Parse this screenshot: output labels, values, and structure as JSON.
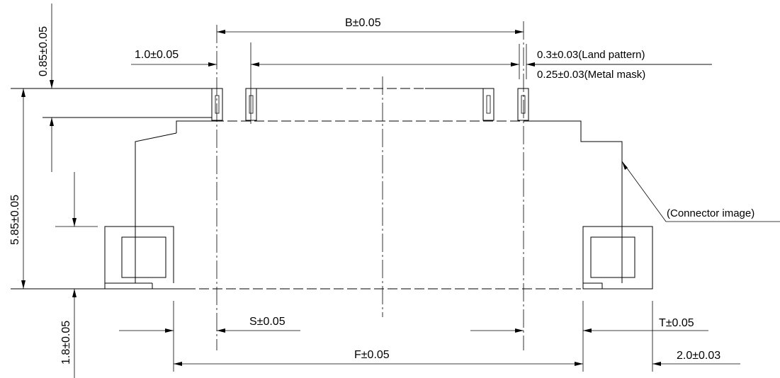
{
  "dimensions": {
    "pitch_b": "B±0.05",
    "pad_width": "1.0±0.05",
    "land_pattern": "0.3±0.03(Land pattern)",
    "metal_mask": "0.25±0.03(Metal mask)",
    "pad_length": "0.85±0.05",
    "overall_height": "5.85±0.05",
    "bottom_offset": "1.8±0.05",
    "span_s": "S±0.05",
    "span_t": "T±0.05",
    "span_f": "F±0.05",
    "tab_width": "2.0±0.03"
  },
  "annotations": {
    "connector_image": "(Connector image)"
  }
}
